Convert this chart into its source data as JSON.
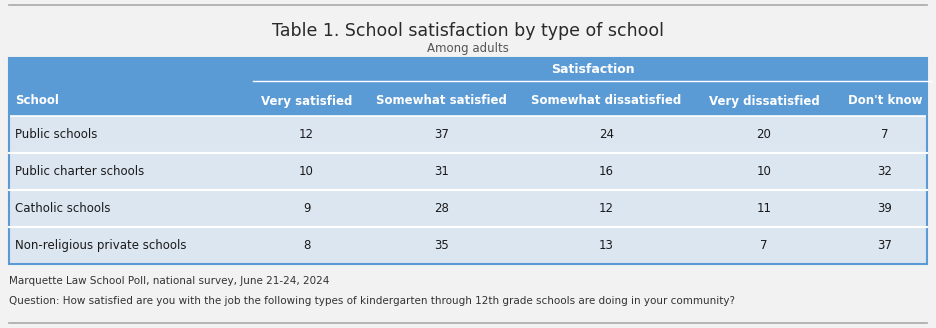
{
  "title": "Table 1. School satisfaction by type of school",
  "subtitle": "Among adults",
  "header_group": "Satisfaction",
  "col_headers": [
    "School",
    "Very satisfied",
    "Somewhat satisfied",
    "Somewhat dissatisfied",
    "Very dissatisfied",
    "Don't know"
  ],
  "rows": [
    [
      "Public schools",
      "12",
      "37",
      "24",
      "20",
      "7"
    ],
    [
      "Public charter schools",
      "10",
      "31",
      "16",
      "10",
      "32"
    ],
    [
      "Catholic schools",
      "9",
      "28",
      "12",
      "11",
      "39"
    ],
    [
      "Non-religious private schools",
      "8",
      "35",
      "13",
      "7",
      "37"
    ]
  ],
  "footnote1": "Marquette Law School Poll, national survey, June 21-24, 2024",
  "footnote2": "Question: How satisfied are you with the job the following types of kindergarten through 12th grade schools are doing in your community?",
  "header_bg": "#5b9bd5",
  "header_text_color": "#ffffff",
  "row_bg": "#dce6f1",
  "data_text_color": "#1a1a1a",
  "table_border_color": "#5b9bd5",
  "fig_bg": "#f2f2f2",
  "title_fontsize": 12.5,
  "subtitle_fontsize": 8.5,
  "header_fontsize": 8.5,
  "data_fontsize": 8.5,
  "footnote_fontsize": 7.5,
  "top_line_color": "#aaaaaa",
  "bottom_line_color": "#aaaaaa"
}
